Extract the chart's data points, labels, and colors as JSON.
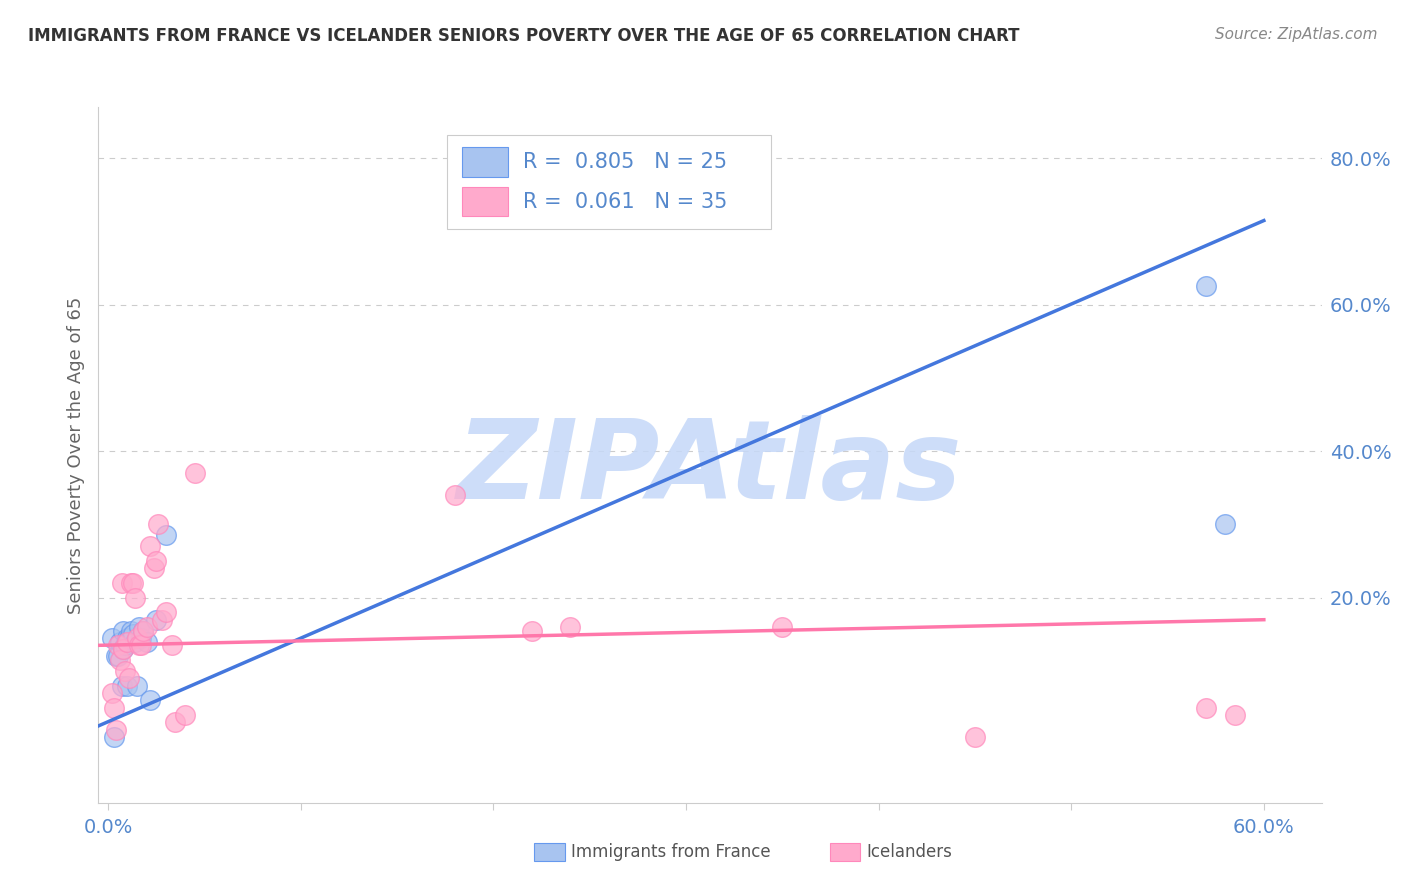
{
  "title": "IMMIGRANTS FROM FRANCE VS ICELANDER SENIORS POVERTY OVER THE AGE OF 65 CORRELATION CHART",
  "source": "Source: ZipAtlas.com",
  "ylabel": "Seniors Poverty Over the Age of 65",
  "xlim": [
    -0.005,
    0.63
  ],
  "ylim": [
    -0.08,
    0.87
  ],
  "xticks": [
    0.0,
    0.1,
    0.2,
    0.3,
    0.4,
    0.5,
    0.6
  ],
  "xtick_labels": [
    "0.0%",
    "",
    "",
    "",
    "",
    "",
    "60.0%"
  ],
  "ytick_right_vals": [
    0.0,
    0.2,
    0.4,
    0.6,
    0.8
  ],
  "ytick_right_labels": [
    "",
    "20.0%",
    "40.0%",
    "60.0%",
    "80.0%"
  ],
  "legend_R1": "0.805",
  "legend_N1": "25",
  "legend_R2": "0.061",
  "legend_N2": "35",
  "color_blue_fill": "#A8C4F0",
  "color_blue_edge": "#6699EE",
  "color_blue_line": "#4477DD",
  "color_pink_fill": "#FFAACC",
  "color_pink_edge": "#FF88BB",
  "color_pink_line": "#FF77AA",
  "color_title": "#333333",
  "color_source": "#888888",
  "color_watermark": "#C5D8F8",
  "watermark_text": "ZIPAtlas",
  "blue_scatter_x": [
    0.002,
    0.003,
    0.004,
    0.005,
    0.006,
    0.007,
    0.008,
    0.008,
    0.009,
    0.01,
    0.01,
    0.011,
    0.012,
    0.013,
    0.014,
    0.015,
    0.016,
    0.017,
    0.018,
    0.02,
    0.022,
    0.025,
    0.03,
    0.57,
    0.58
  ],
  "blue_scatter_y": [
    0.145,
    0.01,
    0.12,
    0.12,
    0.14,
    0.08,
    0.13,
    0.155,
    0.135,
    0.145,
    0.08,
    0.145,
    0.155,
    0.15,
    0.14,
    0.08,
    0.16,
    0.145,
    0.155,
    0.14,
    0.06,
    0.17,
    0.285,
    0.625,
    0.3
  ],
  "pink_scatter_x": [
    0.002,
    0.003,
    0.004,
    0.005,
    0.006,
    0.007,
    0.008,
    0.009,
    0.01,
    0.011,
    0.012,
    0.013,
    0.014,
    0.015,
    0.016,
    0.017,
    0.018,
    0.02,
    0.022,
    0.024,
    0.025,
    0.026,
    0.028,
    0.03,
    0.033,
    0.035,
    0.04,
    0.045,
    0.18,
    0.22,
    0.24,
    0.35,
    0.45,
    0.57,
    0.585
  ],
  "pink_scatter_y": [
    0.07,
    0.05,
    0.02,
    0.135,
    0.115,
    0.22,
    0.13,
    0.1,
    0.14,
    0.09,
    0.22,
    0.22,
    0.2,
    0.145,
    0.135,
    0.135,
    0.155,
    0.16,
    0.27,
    0.24,
    0.25,
    0.3,
    0.17,
    0.18,
    0.135,
    0.03,
    0.04,
    0.37,
    0.34,
    0.155,
    0.16,
    0.16,
    0.01,
    0.05,
    0.04
  ],
  "blue_line_x": [
    -0.005,
    0.6
  ],
  "blue_line_y": [
    0.025,
    0.715
  ],
  "pink_line_x": [
    -0.005,
    0.6
  ],
  "pink_line_y": [
    0.135,
    0.17
  ],
  "grid_color": "#CCCCCC",
  "background_color": "#FFFFFF"
}
